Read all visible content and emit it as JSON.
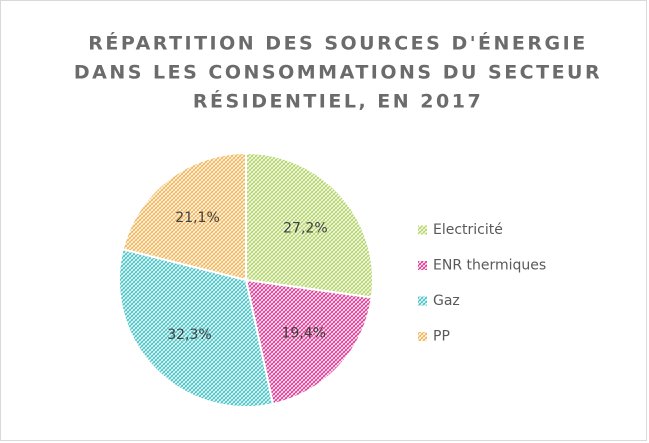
{
  "chart_data": {
    "type": "pie",
    "title": [
      "RÉPARTITION DES SOURCES D'ÉNERGIE",
      "DANS LES CONSOMMATIONS DU SECTEUR",
      "RÉSIDENTIEL, EN 2017"
    ],
    "categories": [
      "Electricité",
      "ENR thermiques",
      "Gaz",
      "PP"
    ],
    "values": [
      27.2,
      19.4,
      32.3,
      21.1
    ],
    "value_labels": [
      "27,2%",
      "19,4%",
      "32,3%",
      "21,1%"
    ],
    "colors": [
      "#b5d66a",
      "#e0409a",
      "#4cc6c9",
      "#f3b75c"
    ],
    "legend": "right"
  }
}
